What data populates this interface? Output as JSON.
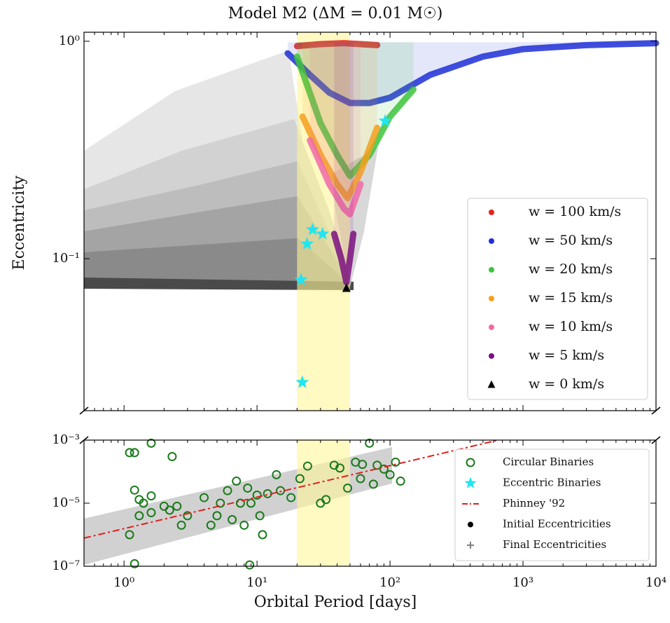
{
  "chart_data": [
    {
      "type": "scatter",
      "title": "Model M2 (ΔM = 0.01 M☉)",
      "y_label": "Eccentricity",
      "xlim": [
        0.5,
        10000
      ],
      "ylim": [
        0.02,
        1.1
      ],
      "log_x": true,
      "log_y": true,
      "yticks": [
        {
          "value": 1,
          "label": "10⁰"
        },
        {
          "value": 0.1,
          "label": "10⁻¹"
        }
      ],
      "highlight_range": [
        20,
        50
      ],
      "highlight_color": "#fff59a",
      "series": [
        {
          "name": "w = 100 km/s",
          "color": "#e8221b",
          "marker": "band",
          "x": [
            20,
            30,
            45,
            60,
            80
          ],
          "values": [
            0.95,
            0.97,
            0.98,
            0.97,
            0.96
          ]
        },
        {
          "name": "w = 50 km/s",
          "color": "#1f2fd6",
          "marker": "band",
          "x": [
            17,
            25,
            35,
            50,
            70,
            100,
            200,
            500,
            1000,
            3000,
            10000
          ],
          "values": [
            0.88,
            0.7,
            0.58,
            0.52,
            0.52,
            0.55,
            0.7,
            0.85,
            0.92,
            0.96,
            0.98
          ]
        },
        {
          "name": "w = 20 km/s",
          "color": "#3cc43c",
          "marker": "band",
          "x": [
            20,
            30,
            40,
            50,
            70,
            100,
            150
          ],
          "values": [
            0.85,
            0.42,
            0.3,
            0.24,
            0.3,
            0.45,
            0.6
          ]
        },
        {
          "name": "w = 15 km/s",
          "color": "#f5a01e",
          "marker": "band",
          "x": [
            22,
            30,
            40,
            48,
            60,
            80
          ],
          "values": [
            0.45,
            0.3,
            0.22,
            0.19,
            0.25,
            0.4
          ]
        },
        {
          "name": "w = 10 km/s",
          "color": "#f06aa8",
          "marker": "band",
          "x": [
            25,
            35,
            45,
            50,
            60
          ],
          "values": [
            0.35,
            0.22,
            0.17,
            0.16,
            0.22
          ]
        },
        {
          "name": "w = 5 km/s",
          "color": "#7a1080",
          "marker": "band",
          "x": [
            38,
            43,
            47,
            50,
            53
          ],
          "values": [
            0.13,
            0.1,
            0.078,
            0.1,
            0.13
          ]
        },
        {
          "name": "w = 0 km/s",
          "color": "#000000",
          "marker": "triangle",
          "x": [
            47
          ],
          "values": [
            0.073
          ]
        }
      ]
    },
    {
      "type": "scatter",
      "x_label": "Orbital Period [days]",
      "xlim": [
        0.5,
        10000
      ],
      "ylim": [
        1e-07,
        0.001
      ],
      "log_x": true,
      "log_y": true,
      "xticks": [
        {
          "value": 1,
          "label": "10⁰"
        },
        {
          "value": 10,
          "label": "10¹"
        },
        {
          "value": 100,
          "label": "10²"
        },
        {
          "value": 1000,
          "label": "10³"
        },
        {
          "value": 10000,
          "label": "10⁴"
        }
      ],
      "yticks": [
        {
          "value": 0.001,
          "label": "10⁻³"
        },
        {
          "value": 1e-05,
          "label": "10⁻⁵"
        },
        {
          "value": 1e-07,
          "label": "10⁻⁷"
        }
      ],
      "series": [
        {
          "name": "Circular Binaries",
          "color": "#1a7a1a",
          "marker": "circle",
          "x": [
            1.1,
            1.2,
            1.6,
            2.3,
            1.2,
            1.3,
            1.4,
            1.3,
            1.1,
            1.6,
            1.6,
            2,
            2.2,
            2.5,
            2.7,
            3,
            4,
            4.5,
            5,
            5.3,
            6,
            6.5,
            7,
            7.5,
            8,
            8.5,
            9,
            10,
            10.5,
            11,
            12,
            14,
            15,
            18,
            21,
            24,
            30,
            38,
            42,
            55,
            60,
            70,
            80,
            90,
            100,
            110,
            120,
            8.8,
            1.2,
            33,
            48,
            62,
            75
          ],
          "values": [
            0.0004,
            0.0004,
            0.0008,
            0.0003,
            2.6e-05,
            1.3e-05,
            1e-05,
            4e-06,
            1e-06,
            5e-06,
            1.7e-05,
            8e-06,
            6e-06,
            8e-06,
            2e-06,
            4e-06,
            1.5e-05,
            2e-06,
            4e-06,
            1e-05,
            2.5e-05,
            3e-06,
            5e-05,
            1e-05,
            2e-06,
            3e-05,
            1e-05,
            1.8e-05,
            4e-06,
            1e-06,
            2e-05,
            8e-05,
            2.5e-05,
            1.5e-05,
            6e-05,
            0.00015,
            1e-05,
            0.00016,
            0.00013,
            0.0002,
            6e-05,
            0.0008,
            0.00016,
            0.00012,
            8e-05,
            0.0002,
            5e-05,
            1.1e-07,
            1.2e-07,
            1.3e-05,
            3e-05,
            0.00017,
            4e-05
          ]
        },
        {
          "name": "Eccentric Binaries",
          "color": "#22e5f0",
          "marker": "star",
          "x": [
            92,
            21.4,
            26.2,
            23.8,
            31.1,
            21.9
          ],
          "values": [
            0.43,
            0.08,
            0.136,
            0.117,
            0.13,
            0.027
          ]
        },
        {
          "name": "Phinney '92",
          "color": "#e0201c",
          "marker": "dashdot",
          "x": [
            0.5,
            650
          ],
          "values": [
            7.8e-07,
            0.001
          ]
        },
        {
          "name": "Initial Eccentricities",
          "color": "#000000",
          "marker": "dot"
        },
        {
          "name": "Final Eccentricities",
          "color": "#808080",
          "marker": "plus"
        }
      ]
    }
  ]
}
